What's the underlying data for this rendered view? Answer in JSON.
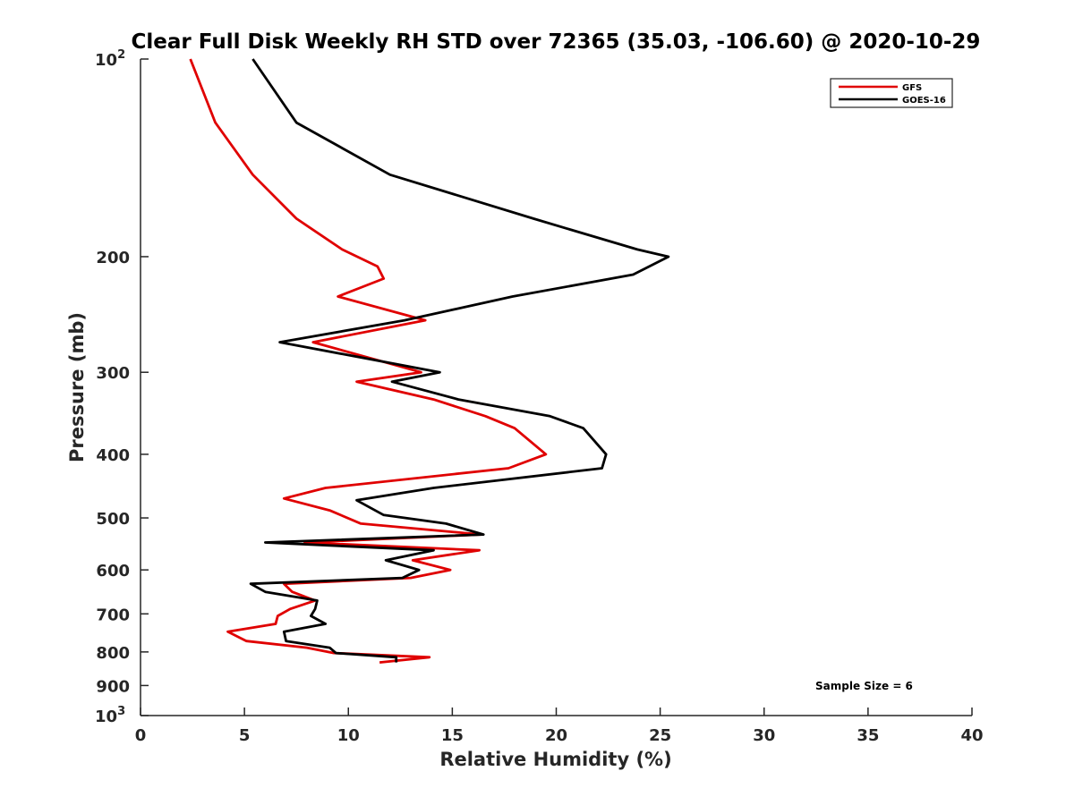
{
  "chart_data": {
    "type": "line",
    "title": "Clear Full Disk Weekly RH STD over 72365 (35.03, -106.60) @ 2020-10-29",
    "xlabel": "Relative Humidity (%)",
    "ylabel": "Pressure (mb)",
    "xlim": [
      0,
      40
    ],
    "ylim": [
      100,
      1000
    ],
    "y_scale": "log",
    "y_reversed": true,
    "grid": false,
    "x_ticks": [
      0,
      5,
      10,
      15,
      20,
      25,
      30,
      35,
      40
    ],
    "x_tick_labels": [
      "0",
      "5",
      "10",
      "15",
      "20",
      "25",
      "30",
      "35",
      "40"
    ],
    "y_ticks": [
      {
        "value": 100,
        "base": "10",
        "exp": "2"
      },
      {
        "value": 200,
        "label": "200"
      },
      {
        "value": 300,
        "label": "300"
      },
      {
        "value": 400,
        "label": "400"
      },
      {
        "value": 500,
        "label": "500"
      },
      {
        "value": 600,
        "label": "600"
      },
      {
        "value": 700,
        "label": "700"
      },
      {
        "value": 800,
        "label": "800"
      },
      {
        "value": 900,
        "label": "900"
      },
      {
        "value": 1000,
        "base": "10",
        "exp": "3"
      }
    ],
    "legend_position": "top-right",
    "annotation": "Sample Size = 6",
    "series": [
      {
        "name": "GFS",
        "color": "#e00000",
        "points": [
          [
            2.4,
            100
          ],
          [
            3.6,
            125
          ],
          [
            5.4,
            150
          ],
          [
            7.5,
            175
          ],
          [
            9.7,
            195
          ],
          [
            11.4,
            207
          ],
          [
            11.7,
            216
          ],
          [
            9.5,
            230
          ],
          [
            13.7,
            250
          ],
          [
            8.3,
            270
          ],
          [
            13.5,
            300
          ],
          [
            10.4,
            310
          ],
          [
            14.1,
            330
          ],
          [
            16.6,
            350
          ],
          [
            18.0,
            365
          ],
          [
            19.5,
            400
          ],
          [
            17.7,
            420
          ],
          [
            8.9,
            450
          ],
          [
            6.9,
            467
          ],
          [
            9.1,
            487
          ],
          [
            10.6,
            510
          ],
          [
            16.4,
            530
          ],
          [
            7.9,
            545
          ],
          [
            16.3,
            560
          ],
          [
            13.1,
            580
          ],
          [
            14.9,
            600
          ],
          [
            13.0,
            617
          ],
          [
            6.9,
            630
          ],
          [
            7.3,
            648
          ],
          [
            8.4,
            668
          ],
          [
            7.2,
            688
          ],
          [
            6.6,
            705
          ],
          [
            6.5,
            725
          ],
          [
            4.2,
            745
          ],
          [
            5.1,
            770
          ],
          [
            8.0,
            788
          ],
          [
            9.3,
            803
          ],
          [
            13.9,
            815
          ],
          [
            11.5,
            830
          ]
        ]
      },
      {
        "name": "GOES-16",
        "color": "#000000",
        "points": [
          [
            5.4,
            100
          ],
          [
            7.5,
            125
          ],
          [
            12.0,
            150
          ],
          [
            18.9,
            175
          ],
          [
            23.9,
            195
          ],
          [
            25.4,
            200
          ],
          [
            23.7,
            213
          ],
          [
            17.9,
            230
          ],
          [
            12.7,
            250
          ],
          [
            6.7,
            270
          ],
          [
            14.4,
            300
          ],
          [
            12.1,
            310
          ],
          [
            15.3,
            330
          ],
          [
            19.7,
            350
          ],
          [
            21.3,
            365
          ],
          [
            22.4,
            400
          ],
          [
            22.2,
            420
          ],
          [
            14.1,
            450
          ],
          [
            10.4,
            470
          ],
          [
            11.7,
            495
          ],
          [
            14.7,
            510
          ],
          [
            16.5,
            530
          ],
          [
            6.0,
            545
          ],
          [
            14.1,
            560
          ],
          [
            11.8,
            580
          ],
          [
            13.4,
            600
          ],
          [
            12.6,
            617
          ],
          [
            5.3,
            630
          ],
          [
            6.0,
            648
          ],
          [
            8.5,
            668
          ],
          [
            8.4,
            688
          ],
          [
            8.2,
            705
          ],
          [
            8.9,
            725
          ],
          [
            6.9,
            745
          ],
          [
            7.0,
            770
          ],
          [
            9.1,
            788
          ],
          [
            9.4,
            803
          ],
          [
            12.3,
            815
          ],
          [
            12.3,
            830
          ]
        ]
      }
    ]
  }
}
